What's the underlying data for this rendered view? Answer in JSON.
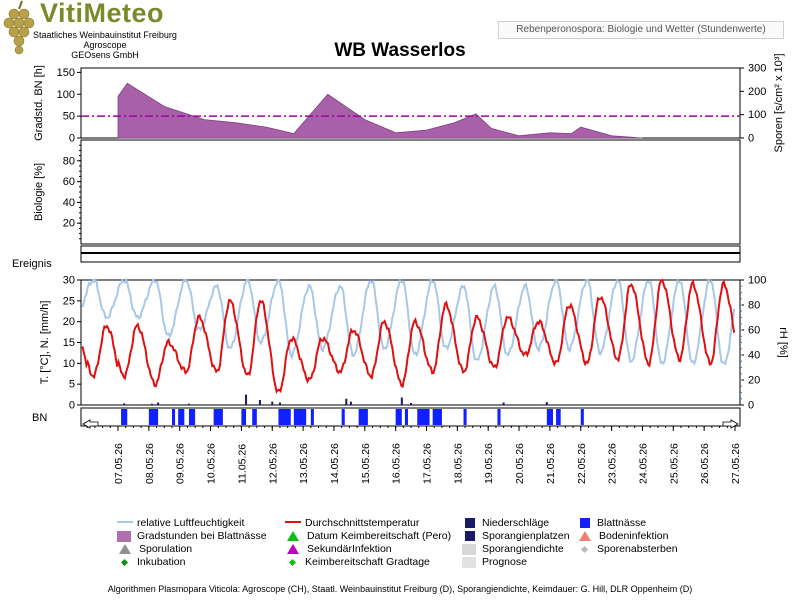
{
  "logo": {
    "title": "VitiMeteo",
    "line1": "Staatliches Weinbauinstitut Freiburg",
    "line2": "Agroscope",
    "line3": "GEOsens GmbH"
  },
  "header_tag": "Rebenperonospora: Biologie und Wetter (Stundenwerte)",
  "station_title": "WB Wasserlos",
  "footer": "Algorithmen Plasmopara Viticola: Agroscope (CH), Staatl. Weinbauinstitut Freiburg (D), Sporangiendichte, Keimdauer: G. Hill, DLR Oppenheim (D)",
  "colors": {
    "rh": "#a8c8e8",
    "temp": "#e01010",
    "temp_forecast": "#e05050",
    "gradstunden": "#a860a8",
    "threshold": "#a000a0",
    "niederschlag": "#1a1a6a",
    "blattnaesse": "#1020ff",
    "forecast_bg": "#e2e2e2"
  },
  "chart_data": [
    {
      "type": "area",
      "panel": "gradstunden",
      "ylabel": "Gradstd. BN [h]",
      "ylim": [
        0,
        160
      ],
      "yticks": [
        0,
        50,
        100,
        150
      ],
      "ylabel_right": "Sporen [s/cm² x 10³]",
      "ylim_right": [
        0,
        300
      ],
      "yticks_right": [
        0,
        100,
        200,
        300
      ],
      "threshold": 50,
      "series": [
        {
          "x": [
            0,
            0.3,
            1.5,
            2.8,
            3.8,
            4.8,
            5.7,
            6.8,
            8.0,
            9.0,
            10.0,
            10.9,
            11.6,
            12.1,
            13.0,
            14.0,
            14.7,
            15.0,
            16.0,
            17.0
          ],
          "values": [
            95,
            125,
            72,
            42,
            35,
            25,
            10,
            100,
            42,
            12,
            18,
            35,
            55,
            22,
            5,
            12,
            10,
            25,
            5,
            0
          ]
        }
      ]
    },
    {
      "type": "line",
      "panel": "biologie",
      "ylabel": "Biologie [%]",
      "ylim": [
        0,
        100
      ],
      "yticks": [
        20,
        40,
        60,
        80
      ]
    },
    {
      "type": "bar",
      "panel": "ereignis",
      "ylabel": "Ereignis"
    },
    {
      "type": "line",
      "panel": "weather",
      "ylabel": "T. [°C], N. [mm/h]",
      "ylim": [
        0,
        30
      ],
      "yticks": [
        0,
        5,
        10,
        15,
        20,
        25,
        30
      ],
      "ylabel_right": "rH [%]",
      "ylim_right": [
        0,
        100
      ],
      "yticks_right": [
        0,
        20,
        40,
        60,
        80,
        100
      ],
      "categories": [
        "07.05.26",
        "08.05.26",
        "09.05.26",
        "10.05.26",
        "11.05.26",
        "12.05.26",
        "13.05.26",
        "14.05.26",
        "15.05.26",
        "16.05.26",
        "17.05.26",
        "18.05.26",
        "19.05.26",
        "20.05.26",
        "21.05.26",
        "22.05.26",
        "23.05.26",
        "24.05.26",
        "25.05.26",
        "26.05.26",
        "27.05.26"
      ],
      "forecast_from": 20.6,
      "temp_min": [
        7,
        5,
        8,
        8,
        7,
        3,
        6,
        8,
        7,
        5,
        8,
        8,
        9,
        12,
        10,
        10,
        11,
        10,
        11,
        10,
        11
      ],
      "temp_max": [
        19,
        15,
        21,
        25,
        25,
        16,
        16,
        18,
        20,
        20,
        24,
        21,
        21,
        20,
        24,
        26,
        29,
        30,
        29,
        29,
        27
      ],
      "rh_min": [
        70,
        55,
        60,
        45,
        50,
        40,
        45,
        40,
        45,
        40,
        45,
        35,
        40,
        45,
        45,
        42,
        35,
        33,
        33,
        32,
        35
      ],
      "rh_max": [
        100,
        100,
        100,
        95,
        100,
        100,
        95,
        95,
        100,
        100,
        100,
        95,
        95,
        95,
        100,
        100,
        100,
        100,
        100,
        100,
        100
      ],
      "niederschlag": [
        {
          "x": 0.2,
          "v": 0.4
        },
        {
          "x": 1.1,
          "v": 0.3
        },
        {
          "x": 1.3,
          "v": 0.6
        },
        {
          "x": 2.3,
          "v": 0.3
        },
        {
          "x": 4.15,
          "v": 2.5
        },
        {
          "x": 4.6,
          "v": 1.2
        },
        {
          "x": 5.0,
          "v": 0.8
        },
        {
          "x": 5.25,
          "v": 0.6
        },
        {
          "x": 7.4,
          "v": 1.5
        },
        {
          "x": 7.55,
          "v": 0.8
        },
        {
          "x": 9.2,
          "v": 1.8
        },
        {
          "x": 9.5,
          "v": 0.5
        },
        {
          "x": 12.5,
          "v": 0.6
        },
        {
          "x": 13.9,
          "v": 0.7
        }
      ],
      "blattnaesse": [
        [
          0.1,
          0.3
        ],
        [
          1.0,
          1.3
        ],
        [
          1.75,
          1.85
        ],
        [
          1.95,
          2.15
        ],
        [
          2.3,
          2.5
        ],
        [
          3.1,
          3.4
        ],
        [
          4.0,
          4.15
        ],
        [
          4.35,
          4.5
        ],
        [
          5.2,
          5.6
        ],
        [
          5.7,
          6.1
        ],
        [
          6.25,
          6.35
        ],
        [
          7.25,
          7.35
        ],
        [
          7.8,
          8.1
        ],
        [
          9.0,
          9.2
        ],
        [
          9.3,
          9.4
        ],
        [
          9.7,
          10.1
        ],
        [
          10.2,
          10.5
        ],
        [
          11.2,
          11.3
        ],
        [
          12.3,
          12.4
        ],
        [
          13.9,
          14.1
        ],
        [
          14.2,
          14.35
        ],
        [
          15.0,
          15.1
        ]
      ]
    }
  ],
  "legend": [
    {
      "symbol": "line",
      "color": "#a8c8e8",
      "label": "relative Luftfeuchtigkeit"
    },
    {
      "symbol": "line",
      "color": "#e01010",
      "label": "Durchschnittstemperatur"
    },
    {
      "symbol": "square",
      "color": "#1a1a6a",
      "label": "Niederschläge"
    },
    {
      "symbol": "square",
      "color": "#1020ff",
      "label": "Blattnässe"
    },
    {
      "symbol": "block",
      "color": "#b070b0",
      "label": "Gradstunden bei Blattnässe"
    },
    {
      "symbol": "triangle",
      "color": "#10c010",
      "label": "Datum Keimbereitschaft (Pero)"
    },
    {
      "symbol": "square",
      "color": "#1a1a6a",
      "label": "Sporangienplatzen"
    },
    {
      "symbol": "triangle",
      "color": "#f08070",
      "label": "Bodeninfektion"
    },
    {
      "symbol": "triangle",
      "color": "#909090",
      "label": "Sporulation"
    },
    {
      "symbol": "triangle",
      "color": "#c000c0",
      "label": "SekundärInfektion"
    },
    {
      "symbol": "block",
      "color": "#d8d8d8",
      "label": "Sporangiendichte"
    },
    {
      "symbol": "diamond",
      "color": "#b8b8b8",
      "label": "Sporenabsterben"
    },
    {
      "symbol": "diamond",
      "color": "#109010",
      "label": "Inkubation"
    },
    {
      "symbol": "diamond",
      "color": "#10c010",
      "label": "Keimbereitschaft Gradtage"
    },
    {
      "symbol": "block",
      "color": "#e2e2e2",
      "label": "Prognose"
    }
  ]
}
